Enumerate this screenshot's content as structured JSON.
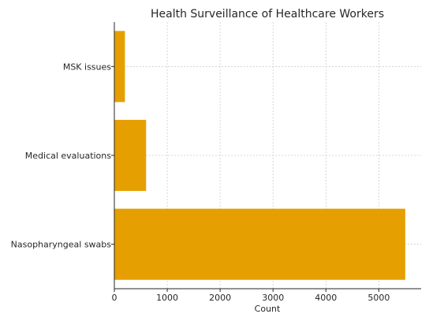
{
  "chart_data": {
    "type": "bar",
    "orientation": "horizontal",
    "title": "Health Surveillance of Healthcare Workers",
    "xlabel": "Count",
    "ylabel": "",
    "categories": [
      "Nasopharyngeal swabs",
      "Medical evaluations",
      "MSK issues"
    ],
    "values": [
      5500,
      600,
      200
    ],
    "xlim": [
      0,
      5800
    ],
    "xticks": [
      0,
      1000,
      2000,
      3000,
      4000,
      5000
    ],
    "xtick_labels": [
      "0",
      "1000",
      "2000",
      "3000",
      "4000",
      "5000"
    ],
    "grid": true,
    "bar_color": "#E69F00"
  }
}
